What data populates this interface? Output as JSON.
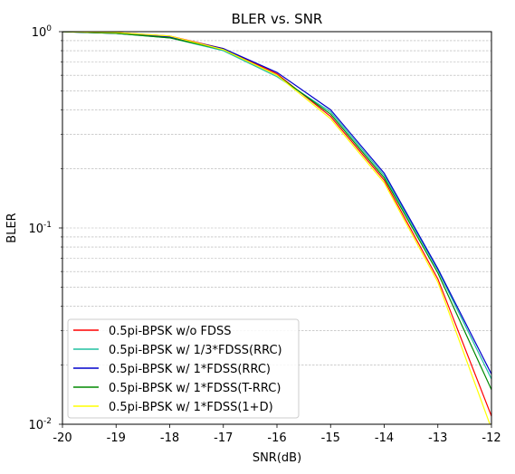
{
  "chart_data": {
    "type": "line",
    "title": "BLER vs. SNR",
    "xlabel": "SNR(dB)",
    "ylabel": "BLER",
    "xlim": [
      -20,
      -12
    ],
    "ylim": [
      0.01,
      1
    ],
    "yscale": "log",
    "grid": "y-major-and-minor-dashed",
    "legend_position": "lower-left",
    "x_ticks": [
      "-20",
      "-19",
      "-18",
      "-17",
      "-16",
      "-15",
      "-14",
      "-13",
      "-12"
    ],
    "y_ticks": [
      {
        "base": "10",
        "exp": "0"
      },
      {
        "base": "10",
        "exp": "-1"
      },
      {
        "base": "10",
        "exp": "-2"
      }
    ],
    "x": [
      -20,
      -19,
      -18,
      -17,
      -16,
      -15,
      -14,
      -13,
      -12
    ],
    "series": [
      {
        "name": "0.5pi-BPSK w/o FDSS",
        "color": "#ff0000",
        "values": [
          1.0,
          0.99,
          0.95,
          0.82,
          0.61,
          0.37,
          0.175,
          0.055,
          0.011
        ]
      },
      {
        "name": "0.5pi-BPSK w/ 1/3*FDSS(RRC)",
        "color": "#20c0a0",
        "values": [
          1.0,
          0.98,
          0.93,
          0.8,
          0.59,
          0.39,
          0.185,
          0.061,
          0.017
        ]
      },
      {
        "name": "0.5pi-BPSK w/ 1*FDSS(RRC)",
        "color": "#0000cc",
        "values": [
          1.0,
          0.98,
          0.94,
          0.82,
          0.62,
          0.4,
          0.19,
          0.062,
          0.018
        ]
      },
      {
        "name": "0.5pi-BPSK w/ 1*FDSS(T-RRC)",
        "color": "#008800",
        "values": [
          1.0,
          0.98,
          0.93,
          0.81,
          0.6,
          0.38,
          0.18,
          0.059,
          0.015
        ]
      },
      {
        "name": "0.5pi-BPSK w/ 1*FDSS(1+D)",
        "color": "#ffff00",
        "values": [
          1.0,
          0.99,
          0.95,
          0.81,
          0.6,
          0.36,
          0.17,
          0.053,
          0.0095
        ]
      }
    ]
  }
}
